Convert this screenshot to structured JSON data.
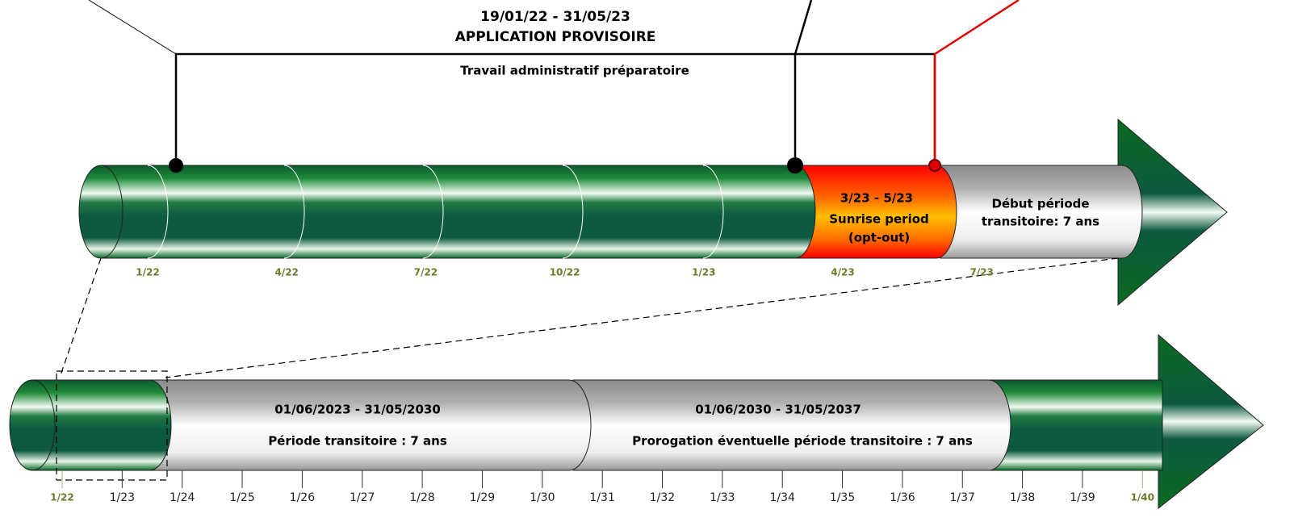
{
  "header": {
    "dates": "19/01/22 - 31/05/23",
    "title": "APPLICATION PROVISOIRE",
    "subtitle": "Travail administratif préparatoire"
  },
  "top_segments": {
    "sunrise": [
      "3/23 - 5/23",
      "Sunrise period",
      "(opt-out)"
    ],
    "transition": [
      "Début période",
      "transitoire: 7 ans"
    ]
  },
  "top_axis": [
    "1/22",
    "4/22",
    "7/22",
    "10/22",
    "1/23",
    "4/23",
    "7/23"
  ],
  "bottom_segments": [
    {
      "dates": "01/06/2023 - 31/05/2030",
      "label": "Période transitoire : 7 ans"
    },
    {
      "dates": "01/06/2030 - 31/05/2037",
      "label": "Prorogation éventuelle période transitoire : 7 ans"
    }
  ],
  "bottom_axis": [
    "1/22",
    "1/23",
    "1/24",
    "1/25",
    "1/26",
    "1/27",
    "1/28",
    "1/29",
    "1/30",
    "1/31",
    "1/32",
    "1/33",
    "1/34",
    "1/35",
    "1/36",
    "1/37",
    "1/38",
    "1/39",
    "1/40"
  ]
}
